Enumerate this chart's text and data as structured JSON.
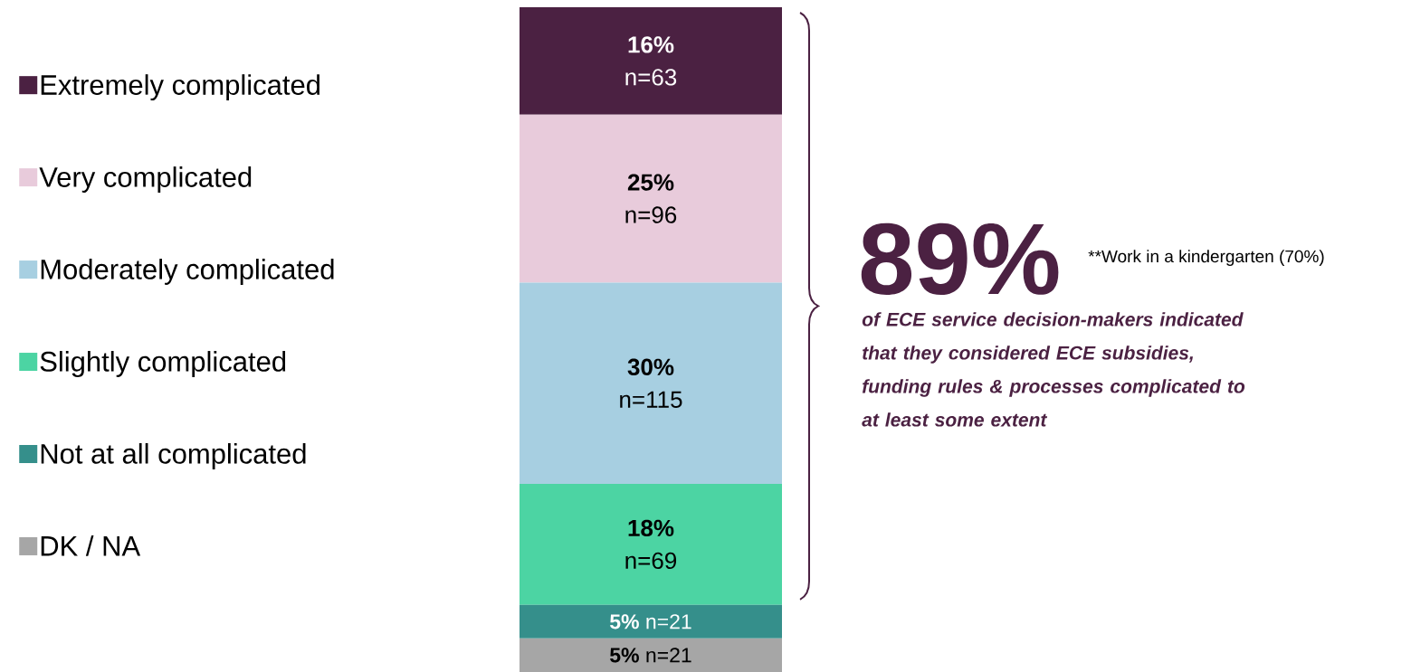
{
  "chart_data": {
    "type": "bar",
    "stacked": true,
    "categories": [
      null
    ],
    "ylim": [
      0,
      99
    ],
    "tick_labels": false,
    "legend": "left",
    "series": [
      {
        "name": "DK / NA",
        "color": "#a6a6a6",
        "values": [
          5
        ],
        "value_labels": [
          "**5%** n=21"
        ]
      },
      {
        "name": "Not at all complicated",
        "color": "#358f8b",
        "values": [
          5
        ],
        "value_labels": [
          "**5%** n=21"
        ]
      },
      {
        "name": "Slightly complicated",
        "color": "#4cd4a3",
        "values": [
          18
        ],
        "value_labels": [
          "**18%** n=69"
        ]
      },
      {
        "name": "Moderately complicated",
        "color": "#a7cfe1",
        "values": [
          30
        ],
        "value_labels": [
          "**30%** n=115"
        ]
      },
      {
        "name": "Very complicated",
        "color": "#e8cbdb",
        "values": [
          25
        ],
        "value_labels": [
          "**25%** n=96"
        ]
      },
      {
        "name": "Extremely complicated",
        "color": "#4b2142",
        "values": [
          16
        ],
        "value_labels": [
          "**16%** n=63"
        ]
      }
    ],
    "annotations": [
      "89%",
      "**Work in a kindergarten (70%)",
      "of ECE service decision-makers indicated that they considered ECE subsidies, funding rules & processes complicated to at least some extent"
    ]
  }
}
